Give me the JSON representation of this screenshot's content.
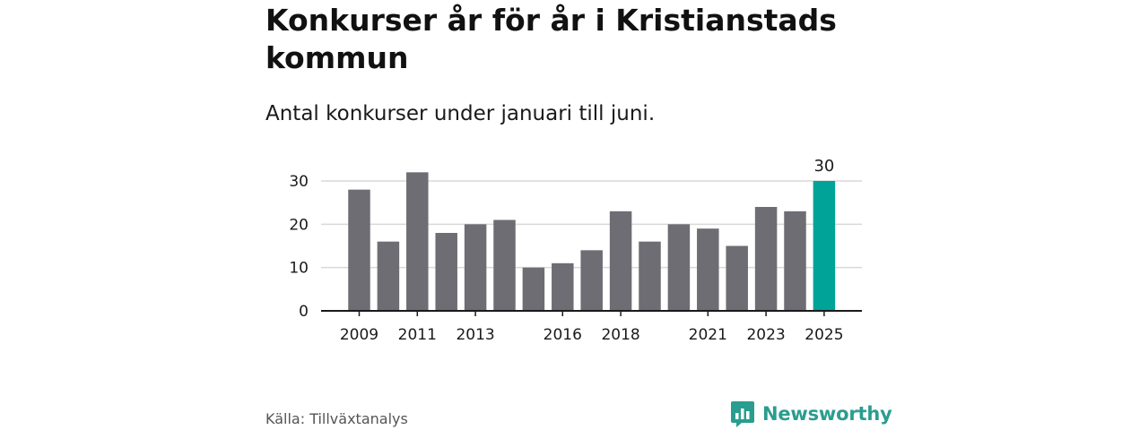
{
  "title": "Konkurser år för år i Kristianstads kommun",
  "subtitle": "Antal konkurser under januari till juni.",
  "source": "Källa: Tillväxtanalys",
  "brand": {
    "name": "Newsworthy",
    "icon": "newsworthy-logo-icon",
    "color": "#2a9d8f"
  },
  "colors": {
    "bar": "#6e6d73",
    "highlight": "#00a398",
    "grid": "#d9d9d9",
    "axis": "#1a1a1a"
  },
  "chart_data": {
    "type": "bar",
    "title": "Konkurser år för år i Kristianstads kommun",
    "subtitle": "Antal konkurser under januari till juni.",
    "xlabel": "",
    "ylabel": "",
    "categories": [
      "2009",
      "2010",
      "2011",
      "2012",
      "2013",
      "2014",
      "2015",
      "2016",
      "2017",
      "2018",
      "2019",
      "2020",
      "2021",
      "2022",
      "2023",
      "2024",
      "2025"
    ],
    "values": [
      28,
      16,
      32,
      18,
      20,
      21,
      10,
      11,
      14,
      23,
      16,
      20,
      19,
      15,
      24,
      23,
      30
    ],
    "x_tick_labels": [
      "2009",
      "2011",
      "2013",
      "2016",
      "2018",
      "2021",
      "2023",
      "2025"
    ],
    "y_ticks": [
      0,
      10,
      20,
      30
    ],
    "ylim": [
      0,
      32
    ],
    "grid": true,
    "legend": "none",
    "highlight": {
      "category": "2025",
      "label": "30"
    }
  }
}
